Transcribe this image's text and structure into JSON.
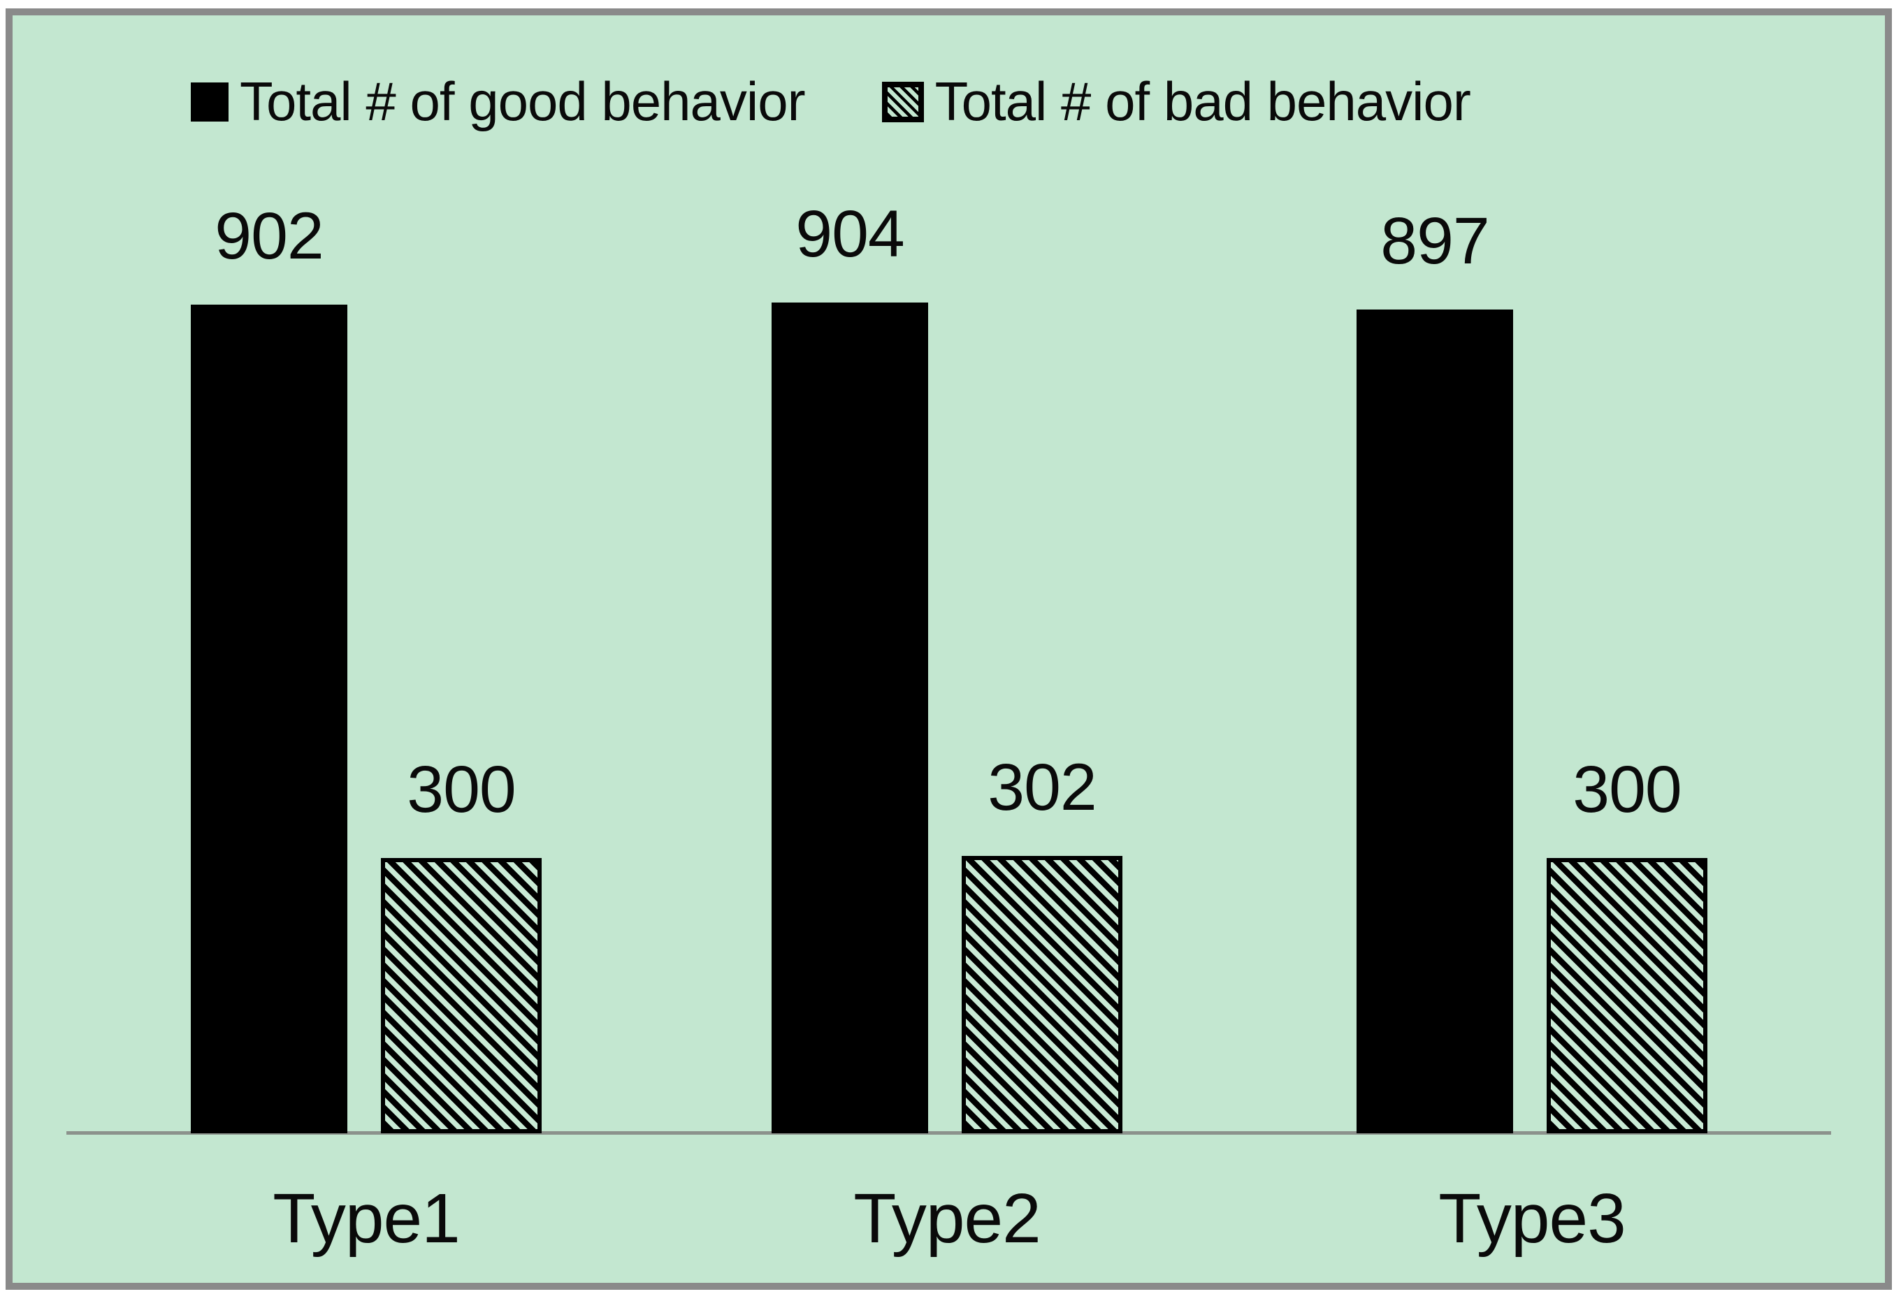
{
  "chart_data": {
    "type": "bar",
    "categories": [
      "Type1",
      "Type2",
      "Type3"
    ],
    "series": [
      {
        "name": "Total # of good behavior",
        "marker": "black-square-icon",
        "fill": "solid-black",
        "values": [
          902,
          904,
          897
        ]
      },
      {
        "name": "Total # of bad behavior",
        "marker": "hatched-square-icon",
        "fill": "diagonal-hatch",
        "values": [
          300,
          302,
          300
        ]
      }
    ],
    "title": "",
    "xlabel": "",
    "ylabel": "",
    "ylim": [
      0,
      1215
    ],
    "value_labels_shown": true,
    "gridlines": false,
    "y_axis_visible": false,
    "legend_position": "top",
    "colors": {
      "background": "#c3e7d0",
      "bar_fill": "#000000",
      "hatch_foreground": "#000000",
      "hatch_background": "#c9ead5",
      "frame_border": "#8a8a8a",
      "axis_line": "#8c928c",
      "text": "#0a0a0a"
    }
  }
}
